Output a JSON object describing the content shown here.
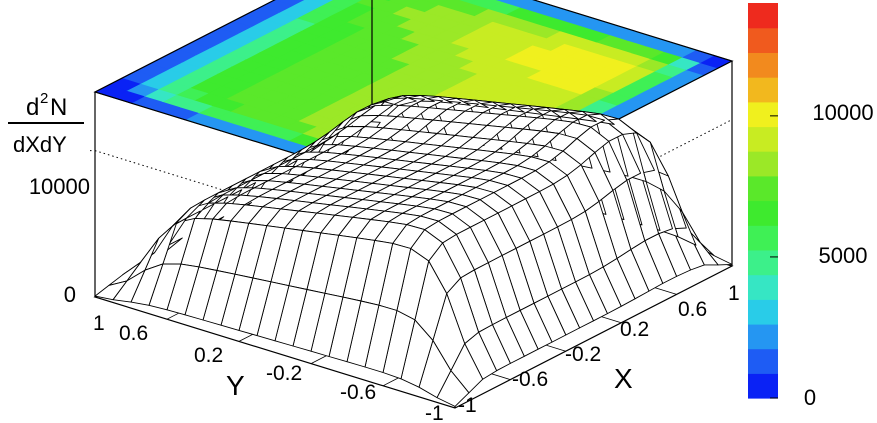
{
  "chart_data": {
    "type": "surface3d",
    "zlabel": {
      "numerator": "d",
      "sup": "2",
      "numerator_rest": "N",
      "denominator": "dXdY"
    },
    "xlabel": "X",
    "ylabel": "Y",
    "x_ticks": [
      "1",
      "0.6",
      "0.2",
      "-0.2",
      "-0.6",
      "-1"
    ],
    "y_ticks": [
      "1",
      "0.6",
      "0.2",
      "-0.2",
      "-0.6",
      "-1"
    ],
    "z_ticks": [
      "0",
      "10000"
    ],
    "zlim": [
      0,
      14000
    ],
    "xlim": [
      -1,
      1
    ],
    "ylim": [
      -1,
      1
    ],
    "grid_points": 21,
    "surface_model": {
      "peak_z": 13500,
      "plateau_z": 9500,
      "x_edge": 0.9,
      "y_edge": 0.85,
      "description": "ridge-shaped distribution rising toward Y = -1, steep drop near |X| = 1"
    },
    "colorbar": {
      "ticks": [
        "0",
        "5000",
        "10000"
      ],
      "colors": [
        "#0a22f5",
        "#1e5cf4",
        "#2596f2",
        "#29cce8",
        "#36e6c4",
        "#3cf08a",
        "#3ff055",
        "#3eea2e",
        "#5ae82a",
        "#9be827",
        "#c8ec22",
        "#f0f01e",
        "#f2b81e",
        "#f28a1e",
        "#f05a1e",
        "#ee2a1e"
      ]
    }
  }
}
